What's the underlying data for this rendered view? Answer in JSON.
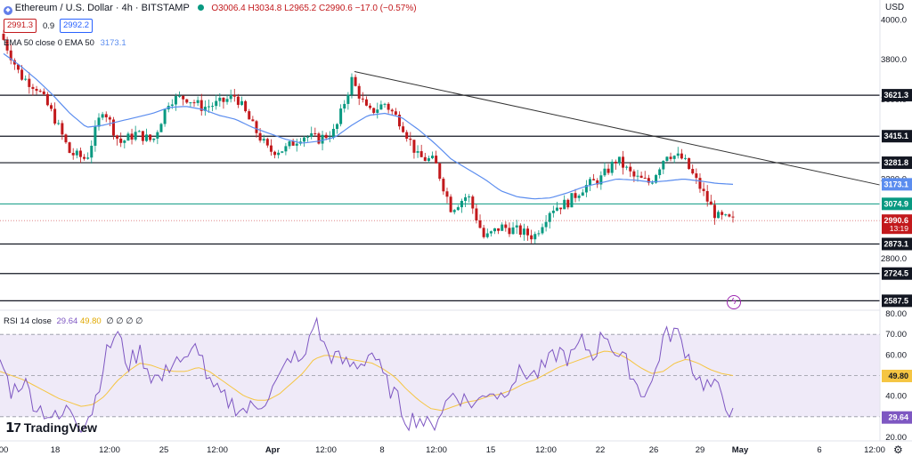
{
  "header": {
    "symbol": "Ethereum / U.S. Dollar · 4h · BITSTAMP",
    "ohlc": "O3006.4 H3034.8 L2965.2 C2990.6 −17.0 (−0.57%)",
    "bid": "2991.3",
    "spread": "0.9",
    "ask": "2992.2",
    "ema_label": "EMA 50 close 0 EMA 50",
    "ema_value": "3173.1",
    "currency": "USD",
    "rsi_label": "RSI 14 close",
    "rsi_value": "29.64",
    "rsi_ma_value": "49.80",
    "rsi_extras": "∅ ∅ ∅ ∅",
    "brand": "TradingView"
  },
  "colors": {
    "up": "#089981",
    "down": "#c2191c",
    "ema": "#5b8def",
    "rsi": "#7e57c2",
    "rsi_ma": "#f5c542",
    "rsi_band": "#efeaf8",
    "support_line": "#089981"
  },
  "chart_data": [
    {
      "type": "candlestick",
      "title": "Ethereum / U.S. Dollar · 4h · BITSTAMP",
      "ylabel": "USD",
      "ylim": [
        2540,
        4100
      ],
      "y_ticks": [
        "4000.0",
        "3800.0",
        "3600.0",
        "3200.0",
        "2800.0"
      ],
      "x_ticks": [
        "00",
        "18",
        "12:00",
        "25",
        "12:00",
        "Apr",
        "12:00",
        "8",
        "12:00",
        "15",
        "12:00",
        "22",
        "26",
        "29",
        "May",
        "6",
        "12:00"
      ],
      "horizontal_levels": [
        {
          "value": 3621.3,
          "label": "3621.3"
        },
        {
          "value": 3415.1,
          "label": "3415.1"
        },
        {
          "value": 3281.8,
          "label": "3281.8"
        },
        {
          "value": 3074.9,
          "label": "3074.9"
        },
        {
          "value": 2873.1,
          "label": "2873.1"
        },
        {
          "value": 2724.5,
          "label": "2724.5"
        },
        {
          "value": 2587.5,
          "label": "2587.5"
        }
      ],
      "trendline": {
        "from_value": 3740,
        "to_value": 3170
      },
      "current_price": {
        "value": 2990.6,
        "label": "2990.6",
        "countdown": "13:19"
      },
      "ema_label_value": {
        "value": 3173.1,
        "label": "3173.1"
      },
      "close_anchors": [
        3900,
        3720,
        3660,
        3520,
        3330,
        3300,
        3560,
        3380,
        3430,
        3390,
        3600,
        3610,
        3560,
        3580,
        3620,
        3470,
        3340,
        3350,
        3420,
        3400,
        3440,
        3700,
        3530,
        3580,
        3480,
        3310,
        3290,
        3050,
        3120,
        2900,
        2960,
        2940,
        2910,
        3050,
        3080,
        3160,
        3200,
        3300,
        3210,
        3180,
        3330,
        3300,
        3160,
        3010,
        2990
      ],
      "ema_anchors": [
        3830,
        3770,
        3700,
        3620,
        3530,
        3460,
        3470,
        3490,
        3510,
        3530,
        3560,
        3565,
        3550,
        3520,
        3500,
        3460,
        3430,
        3400,
        3380,
        3390,
        3410,
        3470,
        3520,
        3530,
        3510,
        3450,
        3380,
        3300,
        3250,
        3200,
        3140,
        3110,
        3100,
        3105,
        3130,
        3160,
        3180,
        3200,
        3195,
        3185,
        3190,
        3200,
        3190,
        3178,
        3173
      ]
    },
    {
      "type": "line",
      "title": "RSI 14 close",
      "ylim": [
        20,
        80
      ],
      "y_ticks": [
        "80.00",
        "70.00",
        "60.00",
        "40.00",
        "30.00",
        "20.00"
      ],
      "band": [
        30,
        70
      ],
      "midline": 50,
      "series": [
        {
          "name": "RSI",
          "values": [
            58,
            42,
            48,
            36,
            32,
            28,
            35,
            26,
            34,
            58,
            72,
            55,
            62,
            50,
            48,
            60,
            55,
            66,
            45,
            40,
            36,
            33,
            35,
            40,
            48,
            60,
            55,
            78,
            62,
            58,
            55,
            56,
            62,
            48,
            40,
            28,
            30,
            24,
            34,
            42,
            38,
            36,
            44,
            40,
            48,
            52,
            50,
            55,
            62,
            58,
            66,
            60,
            72,
            60,
            55,
            42,
            45,
            68,
            72,
            62,
            48,
            45,
            42,
            30
          ]
        },
        {
          "name": "RSI MA",
          "values": [
            52,
            50,
            48,
            45,
            42,
            39,
            37,
            35,
            36,
            40,
            47,
            52,
            56,
            55,
            53,
            52,
            52,
            54,
            52,
            48,
            44,
            40,
            38,
            38,
            41,
            46,
            51,
            58,
            60,
            59,
            58,
            57,
            56,
            53,
            49,
            43,
            38,
            34,
            33,
            35,
            37,
            38,
            40,
            41,
            43,
            46,
            48,
            51,
            54,
            56,
            58,
            60,
            62,
            61,
            58,
            54,
            51,
            52,
            56,
            58,
            56,
            53,
            51,
            50
          ]
        }
      ]
    }
  ]
}
